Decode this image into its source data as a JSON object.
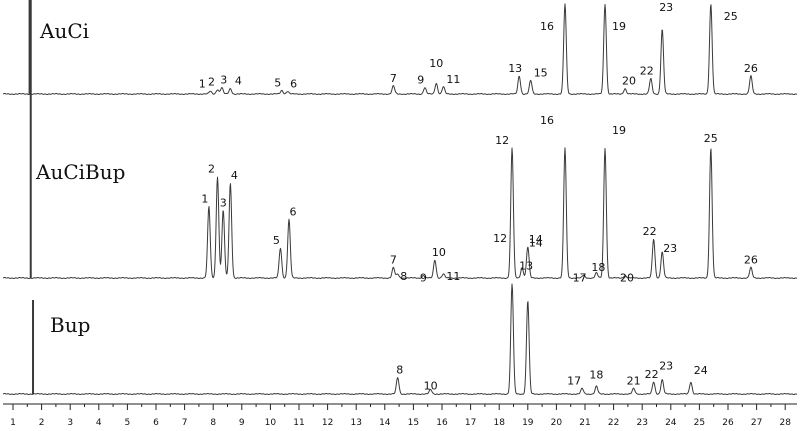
{
  "chart_data": {
    "type": "line",
    "title": "",
    "xlabel": "",
    "ylabel": "",
    "xlim": [
      0.8,
      28.4
    ],
    "x_ticks": [
      1,
      2,
      3,
      4,
      5,
      6,
      7,
      8,
      9,
      10,
      11,
      12,
      13,
      14,
      15,
      16,
      17,
      18,
      19,
      20,
      21,
      22,
      23,
      24,
      25,
      26,
      27,
      28
    ],
    "grid": false,
    "legend": "none",
    "series": [
      {
        "name": "AuCi",
        "height_scale": 90,
        "peaks": [
          {
            "label": "1",
            "x": 7.9,
            "h": 0.03
          },
          {
            "label": "2",
            "x": 8.15,
            "h": 0.05
          },
          {
            "label": "3",
            "x": 8.3,
            "h": 0.07
          },
          {
            "label": "4",
            "x": 8.6,
            "h": 0.06
          },
          {
            "label": "5",
            "x": 10.4,
            "h": 0.04
          },
          {
            "label": "6",
            "x": 10.6,
            "h": 0.03
          },
          {
            "label": "7",
            "x": 14.3,
            "h": 0.09
          },
          {
            "label": "9",
            "x": 15.4,
            "h": 0.07
          },
          {
            "label": "10",
            "x": 15.8,
            "h": 0.12
          },
          {
            "label": "11",
            "x": 16.05,
            "h": 0.08
          },
          {
            "label": "13",
            "x": 18.7,
            "h": 0.2
          },
          {
            "label": "15",
            "x": 19.1,
            "h": 0.15
          },
          {
            "label": "16",
            "x": 20.3,
            "h": 1.0
          },
          {
            "label": "19",
            "x": 21.7,
            "h": 1.0
          },
          {
            "label": "20",
            "x": 22.4,
            "h": 0.06
          },
          {
            "label": "22",
            "x": 23.3,
            "h": 0.17
          },
          {
            "label": "23",
            "x": 23.7,
            "h": 0.72
          },
          {
            "label": "25",
            "x": 25.4,
            "h": 1.0
          },
          {
            "label": "26",
            "x": 26.8,
            "h": 0.2
          }
        ]
      },
      {
        "name": "AuCiBup",
        "height_scale": 130,
        "peaks": [
          {
            "label": "1",
            "x": 7.85,
            "h": 0.55
          },
          {
            "label": "2",
            "x": 8.15,
            "h": 0.78
          },
          {
            "label": "3",
            "x": 8.35,
            "h": 0.52
          },
          {
            "label": "4",
            "x": 8.6,
            "h": 0.73
          },
          {
            "label": "5",
            "x": 10.35,
            "h": 0.23
          },
          {
            "label": "6",
            "x": 10.65,
            "h": 0.45
          },
          {
            "label": "7",
            "x": 14.3,
            "h": 0.08
          },
          {
            "label": "8",
            "x": 14.45,
            "h": 0.03
          },
          {
            "label": "9",
            "x": 15.35,
            "h": 0.02
          },
          {
            "label": "10",
            "x": 15.75,
            "h": 0.14
          },
          {
            "label": "11",
            "x": 16.05,
            "h": 0.03
          },
          {
            "label": "12",
            "x": 18.45,
            "h": 1.0
          },
          {
            "label": "13",
            "x": 18.8,
            "h": 0.08
          },
          {
            "label": "14",
            "x": 19.0,
            "h": 0.24
          },
          {
            "label": "16",
            "x": 20.3,
            "h": 1.0
          },
          {
            "label": "17",
            "x": 20.95,
            "h": 0.02
          },
          {
            "label": "18",
            "x": 21.4,
            "h": 0.04
          },
          {
            "label": "19",
            "x": 21.7,
            "h": 1.0
          },
          {
            "label": "20",
            "x": 22.4,
            "h": 0.02
          },
          {
            "label": "22",
            "x": 23.4,
            "h": 0.3
          },
          {
            "label": "23",
            "x": 23.7,
            "h": 0.2
          },
          {
            "label": "25",
            "x": 25.4,
            "h": 1.0
          },
          {
            "label": "26",
            "x": 26.8,
            "h": 0.08
          }
        ]
      },
      {
        "name": "Bup",
        "height_scale": 110,
        "peaks": [
          {
            "label": "8",
            "x": 14.45,
            "h": 0.15
          },
          {
            "label": "10",
            "x": 15.6,
            "h": 0.04
          },
          {
            "label": "12",
            "x": 18.45,
            "h": 1.0
          },
          {
            "label": "14",
            "x": 19.0,
            "h": 0.85
          },
          {
            "label": "17",
            "x": 20.9,
            "h": 0.05
          },
          {
            "label": "18",
            "x": 21.4,
            "h": 0.07
          },
          {
            "label": "21",
            "x": 22.7,
            "h": 0.05
          },
          {
            "label": "22",
            "x": 23.4,
            "h": 0.11
          },
          {
            "label": "23",
            "x": 23.7,
            "h": 0.13
          },
          {
            "label": "24",
            "x": 24.7,
            "h": 0.11
          }
        ]
      }
    ]
  }
}
